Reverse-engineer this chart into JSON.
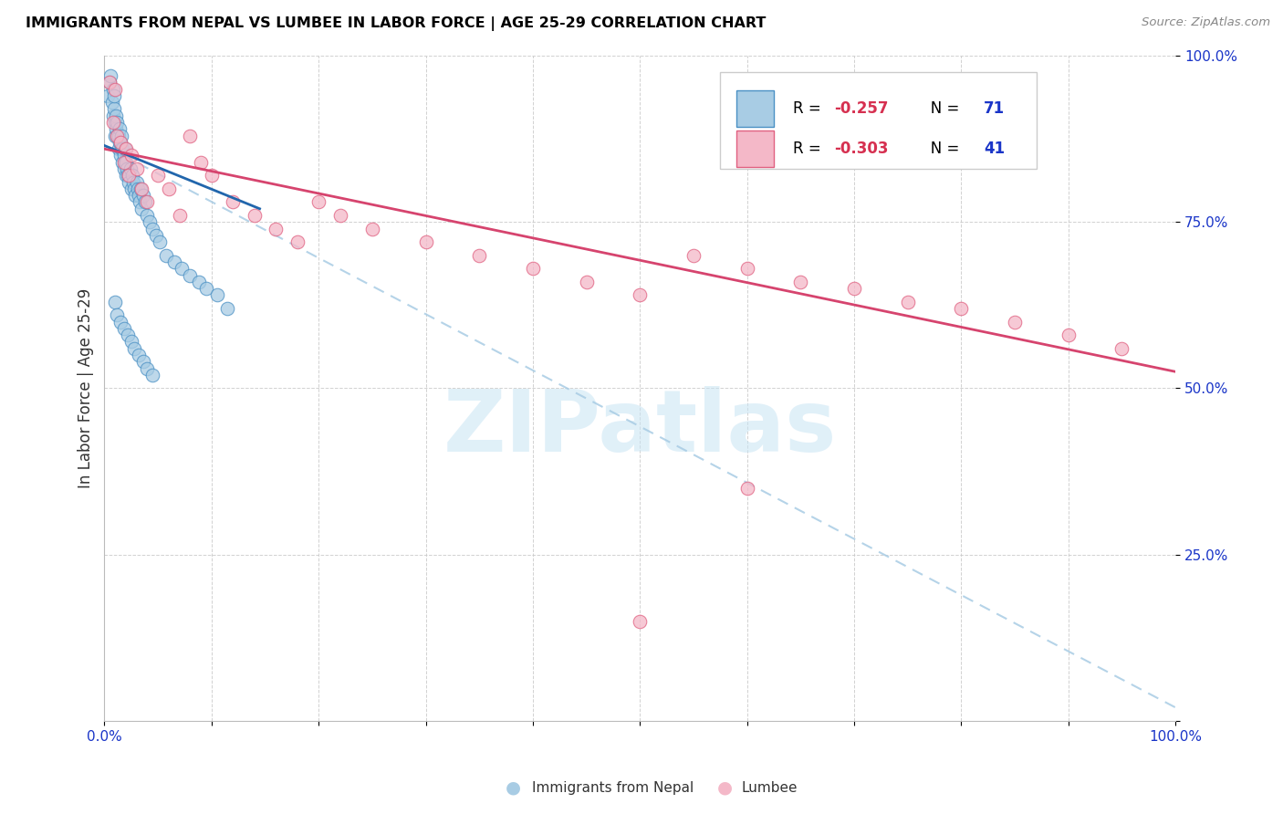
{
  "title": "IMMIGRANTS FROM NEPAL VS LUMBEE IN LABOR FORCE | AGE 25-29 CORRELATION CHART",
  "source_text": "Source: ZipAtlas.com",
  "ylabel": "In Labor Force | Age 25-29",
  "xlim": [
    0.0,
    1.0
  ],
  "ylim": [
    0.0,
    1.0
  ],
  "yticks": [
    0.0,
    0.25,
    0.5,
    0.75,
    1.0
  ],
  "ytick_labels": [
    "",
    "25.0%",
    "50.0%",
    "75.0%",
    "100.0%"
  ],
  "xtick_positions": [
    0.0,
    0.1,
    0.2,
    0.3,
    0.4,
    0.5,
    0.6,
    0.7,
    0.8,
    0.9,
    1.0
  ],
  "xtick_labels": [
    "0.0%",
    "",
    "",
    "",
    "",
    "",
    "",
    "",
    "",
    "",
    "100.0%"
  ],
  "watermark_text": "ZIPatlas",
  "legend_nepal_r": "-0.257",
  "legend_nepal_n": "71",
  "legend_lumbee_r": "-0.303",
  "legend_lumbee_n": "41",
  "nepal_scatter_color": "#a8cce4",
  "nepal_edge_color": "#4a90c4",
  "lumbee_scatter_color": "#f4b8c8",
  "lumbee_edge_color": "#e06080",
  "nepal_line_color": "#2166ac",
  "lumbee_line_color": "#d6446e",
  "dashed_line_color": "#a8cce4",
  "tick_label_color": "#1a35c8",
  "legend_r_color": "#d63050",
  "legend_n_color": "#1a35c8",
  "nepal_line_x0": 0.0,
  "nepal_line_y0": 0.865,
  "nepal_line_x1": 0.145,
  "nepal_line_y1": 0.77,
  "lumbee_line_x0": 0.0,
  "lumbee_line_y0": 0.86,
  "lumbee_line_x1": 1.0,
  "lumbee_line_y1": 0.525,
  "dashed_line_x0": 0.0,
  "dashed_line_y0": 0.865,
  "dashed_line_x1": 1.0,
  "dashed_line_y1": 0.02,
  "nepal_x": [
    0.003,
    0.005,
    0.006,
    0.007,
    0.008,
    0.008,
    0.009,
    0.009,
    0.01,
    0.01,
    0.011,
    0.011,
    0.012,
    0.012,
    0.013,
    0.013,
    0.014,
    0.014,
    0.015,
    0.015,
    0.016,
    0.016,
    0.017,
    0.017,
    0.018,
    0.018,
    0.019,
    0.019,
    0.02,
    0.02,
    0.021,
    0.022,
    0.023,
    0.024,
    0.025,
    0.026,
    0.027,
    0.028,
    0.029,
    0.03,
    0.031,
    0.032,
    0.033,
    0.034,
    0.035,
    0.036,
    0.038,
    0.04,
    0.042,
    0.045,
    0.048,
    0.052,
    0.058,
    0.065,
    0.072,
    0.08,
    0.088,
    0.095,
    0.105,
    0.115,
    0.01,
    0.012,
    0.015,
    0.018,
    0.022,
    0.025,
    0.028,
    0.032,
    0.036,
    0.04,
    0.045
  ],
  "nepal_y": [
    0.94,
    0.96,
    0.97,
    0.93,
    0.95,
    0.91,
    0.92,
    0.94,
    0.9,
    0.88,
    0.89,
    0.91,
    0.88,
    0.9,
    0.86,
    0.88,
    0.87,
    0.89,
    0.85,
    0.87,
    0.86,
    0.88,
    0.84,
    0.86,
    0.83,
    0.85,
    0.84,
    0.86,
    0.82,
    0.84,
    0.83,
    0.82,
    0.81,
    0.83,
    0.8,
    0.82,
    0.81,
    0.8,
    0.79,
    0.81,
    0.8,
    0.79,
    0.78,
    0.8,
    0.77,
    0.79,
    0.78,
    0.76,
    0.75,
    0.74,
    0.73,
    0.72,
    0.7,
    0.69,
    0.68,
    0.67,
    0.66,
    0.65,
    0.64,
    0.62,
    0.63,
    0.61,
    0.6,
    0.59,
    0.58,
    0.57,
    0.56,
    0.55,
    0.54,
    0.53,
    0.52
  ],
  "lumbee_x": [
    0.005,
    0.008,
    0.01,
    0.012,
    0.015,
    0.018,
    0.02,
    0.023,
    0.025,
    0.03,
    0.035,
    0.04,
    0.05,
    0.06,
    0.07,
    0.08,
    0.09,
    0.1,
    0.12,
    0.14,
    0.16,
    0.18,
    0.2,
    0.22,
    0.25,
    0.3,
    0.35,
    0.4,
    0.45,
    0.5,
    0.55,
    0.6,
    0.65,
    0.7,
    0.75,
    0.8,
    0.85,
    0.9,
    0.95,
    0.5,
    0.6
  ],
  "lumbee_y": [
    0.96,
    0.9,
    0.95,
    0.88,
    0.87,
    0.84,
    0.86,
    0.82,
    0.85,
    0.83,
    0.8,
    0.78,
    0.82,
    0.8,
    0.76,
    0.88,
    0.84,
    0.82,
    0.78,
    0.76,
    0.74,
    0.72,
    0.78,
    0.76,
    0.74,
    0.72,
    0.7,
    0.68,
    0.66,
    0.64,
    0.7,
    0.68,
    0.66,
    0.65,
    0.63,
    0.62,
    0.6,
    0.58,
    0.56,
    0.15,
    0.35
  ]
}
